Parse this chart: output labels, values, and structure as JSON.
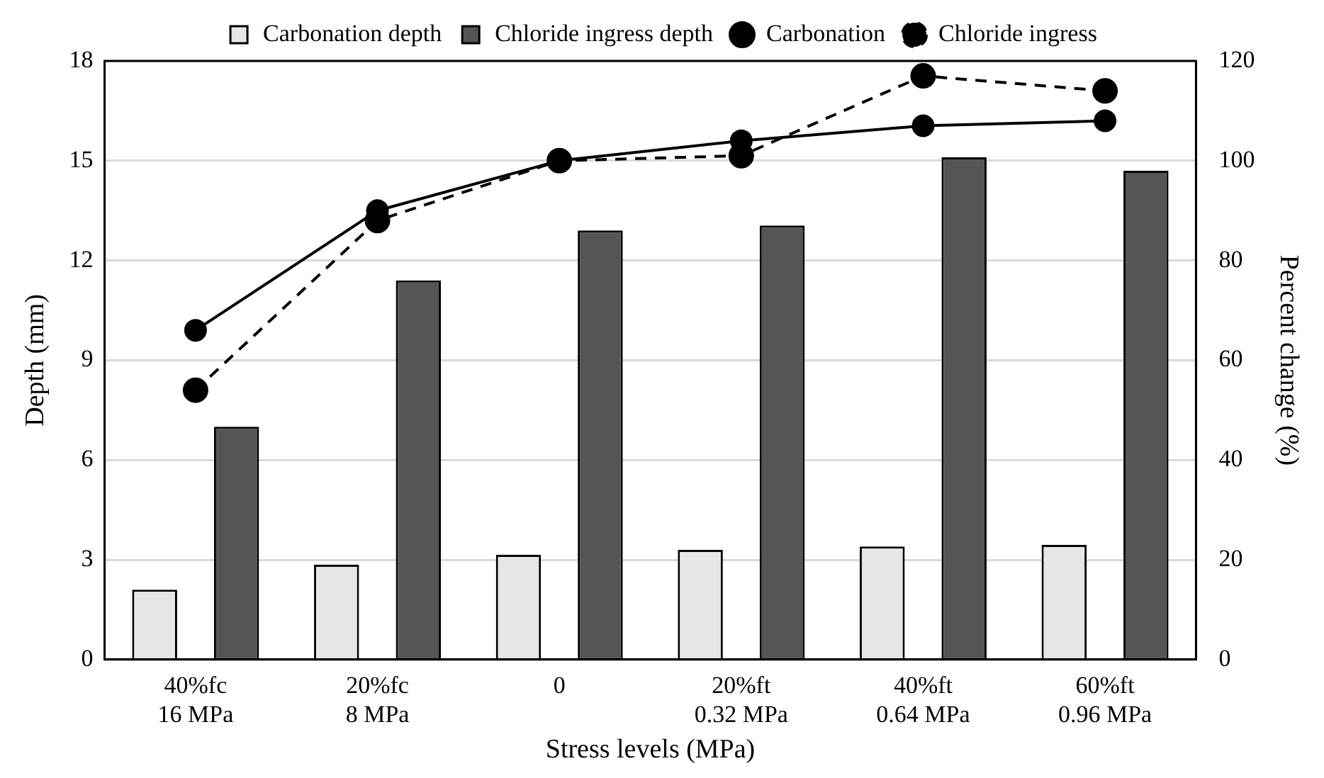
{
  "chart_data": {
    "type": "bar",
    "xlabel": "Stress levels (MPa)",
    "ylabel": "Depth (mm)",
    "y2label": "Percent change (%)",
    "categories": [
      "40%fc\n16 MPa",
      "20%fc\n8 MPa",
      "0",
      "20%ft\n0.32 MPa",
      "40%ft\n0.64 MPa",
      "60%ft\n0.96 MPa"
    ],
    "series": [
      {
        "name": "Carbonation depth",
        "color": "#e6e6e6",
        "values": [
          2.1,
          2.85,
          3.15,
          3.3,
          3.4,
          3.45
        ]
      },
      {
        "name": "Chloride ingress depth",
        "color": "#555555",
        "values": [
          7.0,
          11.4,
          12.9,
          13.05,
          15.1,
          14.7
        ]
      },
      {
        "name": "Carbonation",
        "type": "line",
        "axis": "y2",
        "color": "#000000",
        "line_style": "solid",
        "values": [
          66,
          90,
          100,
          104,
          107,
          108
        ]
      },
      {
        "name": "Chloride ingress",
        "type": "line",
        "axis": "y2",
        "color": "#000000",
        "line_style": "dashed",
        "values": [
          54,
          88,
          100,
          101,
          117,
          114
        ]
      }
    ],
    "ylim": [
      0,
      18
    ],
    "yticks": [
      0,
      3,
      6,
      9,
      12,
      15,
      18
    ],
    "y2lim": [
      0,
      120
    ],
    "y2ticks": [
      0,
      20,
      40,
      60,
      80,
      100,
      120
    ],
    "grid": "y",
    "legend": "top",
    "marker": "circle"
  }
}
